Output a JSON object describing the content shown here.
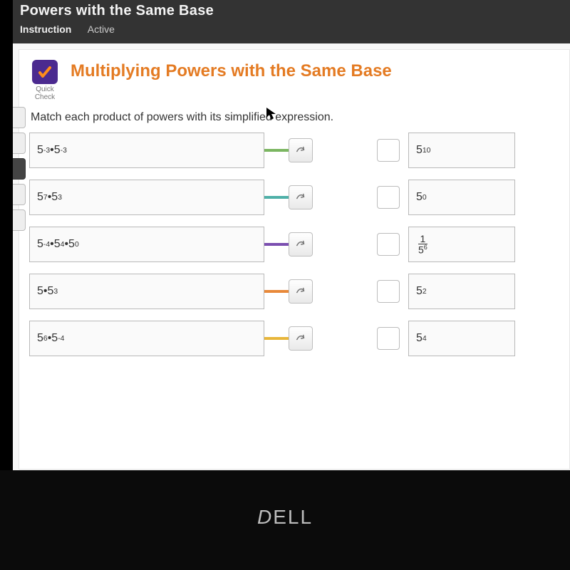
{
  "topbar": {
    "title": "Powers with the Same Base",
    "tabs": {
      "active": "Instruction",
      "inactive": "Active"
    }
  },
  "badge": {
    "line1": "Quick",
    "line2": "Check"
  },
  "lesson_title": "Multiplying Powers with the Same Base",
  "instructions": "Match each product of powers with its simplified expression.",
  "prompts": [
    {
      "html": "5<sup>-3</sup>•5<sup>-3</sup>",
      "connector_color": "#7bb661"
    },
    {
      "html": "5<sup>7</sup>•5<sup>3</sup>",
      "connector_color": "#4fb0a8"
    },
    {
      "html": "5<sup>-4</sup>•5<sup>4</sup>•5<sup>0</sup>",
      "connector_color": "#7b4fb0"
    },
    {
      "html": "5•5<sup>3</sup>",
      "connector_color": "#e8893a"
    },
    {
      "html": "5<sup>6</sup>•5<sup>-4</sup>",
      "connector_color": "#e8b63a"
    }
  ],
  "answers": [
    {
      "html": "5<sup>10</sup>"
    },
    {
      "html": "5<sup>0</sup>"
    },
    {
      "is_fraction": true,
      "num": "1",
      "den_html": "5<sup>6</sup>"
    },
    {
      "html": "5<sup>2</sup>"
    },
    {
      "html": "5<sup>4</sup>"
    }
  ],
  "colors": {
    "accent_orange": "#e47b23",
    "badge_bg": "#4b2a8f",
    "topbar_bg": "#333333",
    "connector_colors": [
      "#7bb661",
      "#4fb0a8",
      "#7b4fb0",
      "#e8893a",
      "#e8b63a"
    ]
  },
  "brand": "DELL"
}
